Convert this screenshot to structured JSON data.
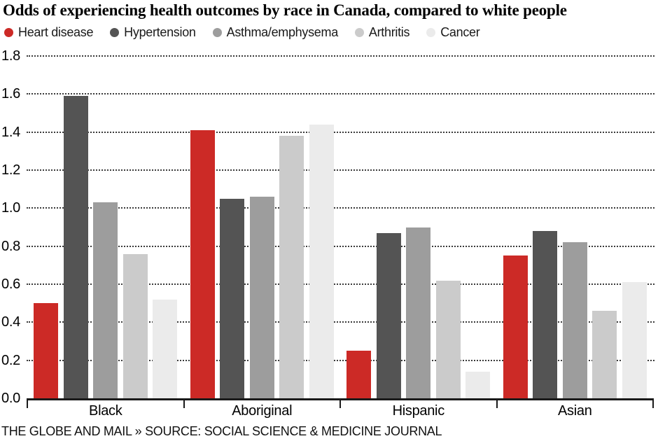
{
  "page": {
    "title": "Odds of experiencing health outcomes by race in Canada, compared to white people",
    "footer": "THE GLOBE AND MAIL » SOURCE: SOCIAL SCIENCE & MEDICINE JOURNAL"
  },
  "colors": {
    "heart_disease_red": "#cc2a26",
    "hypertension_dark_gray": "#545454",
    "asthma_mid_gray": "#9d9d9d",
    "arthritis_light_gray": "#cbcbcb",
    "cancer_pale_gray": "#ebebeb",
    "axis_black": "#1a1a1a",
    "grid_dot_gray": "#3b3b3b",
    "background": "#ffffff"
  },
  "chart_data": {
    "type": "bar",
    "title": "Odds of experiencing health outcomes by race in Canada, compared to white people",
    "categories": [
      "Black",
      "Aboriginal",
      "Hispanic",
      "Asian"
    ],
    "series": [
      {
        "name": "Heart disease",
        "color": "#cc2a26",
        "values": [
          0.5,
          1.41,
          0.25,
          0.75
        ]
      },
      {
        "name": "Hypertension",
        "color": "#545454",
        "values": [
          1.59,
          1.05,
          0.87,
          0.88
        ]
      },
      {
        "name": "Asthma/emphysema",
        "color": "#9d9d9d",
        "values": [
          1.03,
          1.06,
          0.9,
          0.82
        ]
      },
      {
        "name": "Arthritis",
        "color": "#cbcbcb",
        "values": [
          0.76,
          1.38,
          0.62,
          0.46
        ]
      },
      {
        "name": "Cancer",
        "color": "#ebebeb",
        "values": [
          0.52,
          1.44,
          0.14,
          0.61
        ]
      }
    ],
    "y_ticks": [
      "0.0",
      "0.2",
      "0.4",
      "0.6",
      "0.8",
      "1.0",
      "1.2",
      "1.4",
      "1.6",
      "1.8"
    ],
    "ylim": [
      0,
      1.8
    ],
    "xlabel": "",
    "ylabel": "",
    "grid": "horizontal-dotted",
    "legend_position": "top",
    "baseline_ticks": "downward at group boundaries"
  }
}
